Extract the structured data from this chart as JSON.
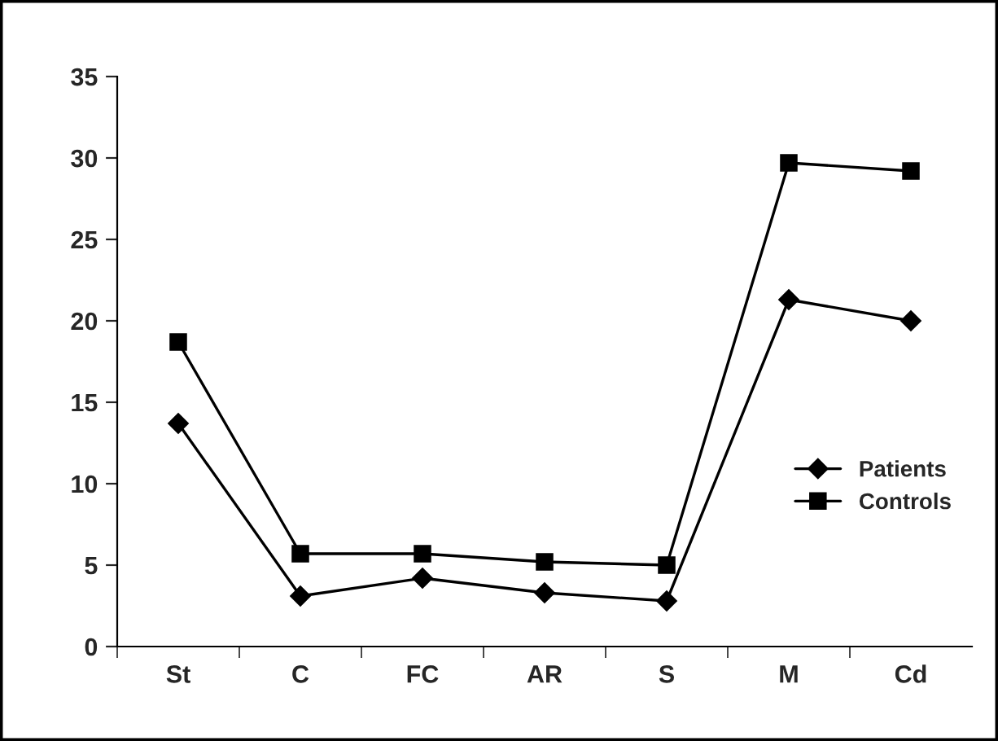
{
  "chart_data": {
    "type": "line",
    "categories": [
      "St",
      "C",
      "FC",
      "AR",
      "S",
      "M",
      "Cd"
    ],
    "series": [
      {
        "name": "Patients",
        "color": "#000000",
        "marker": "diamond",
        "values": [
          13.7,
          3.1,
          4.2,
          3.3,
          2.8,
          21.3,
          20.0
        ]
      },
      {
        "name": "Controls",
        "color": "#000000",
        "marker": "square",
        "values": [
          18.7,
          5.7,
          5.7,
          5.2,
          5.0,
          29.7,
          29.2
        ]
      }
    ],
    "ylim": [
      0,
      35
    ],
    "yticks": [
      0,
      5,
      10,
      15,
      20,
      25,
      30,
      35
    ],
    "grid": false,
    "legend": "right",
    "line_style": "solid"
  }
}
